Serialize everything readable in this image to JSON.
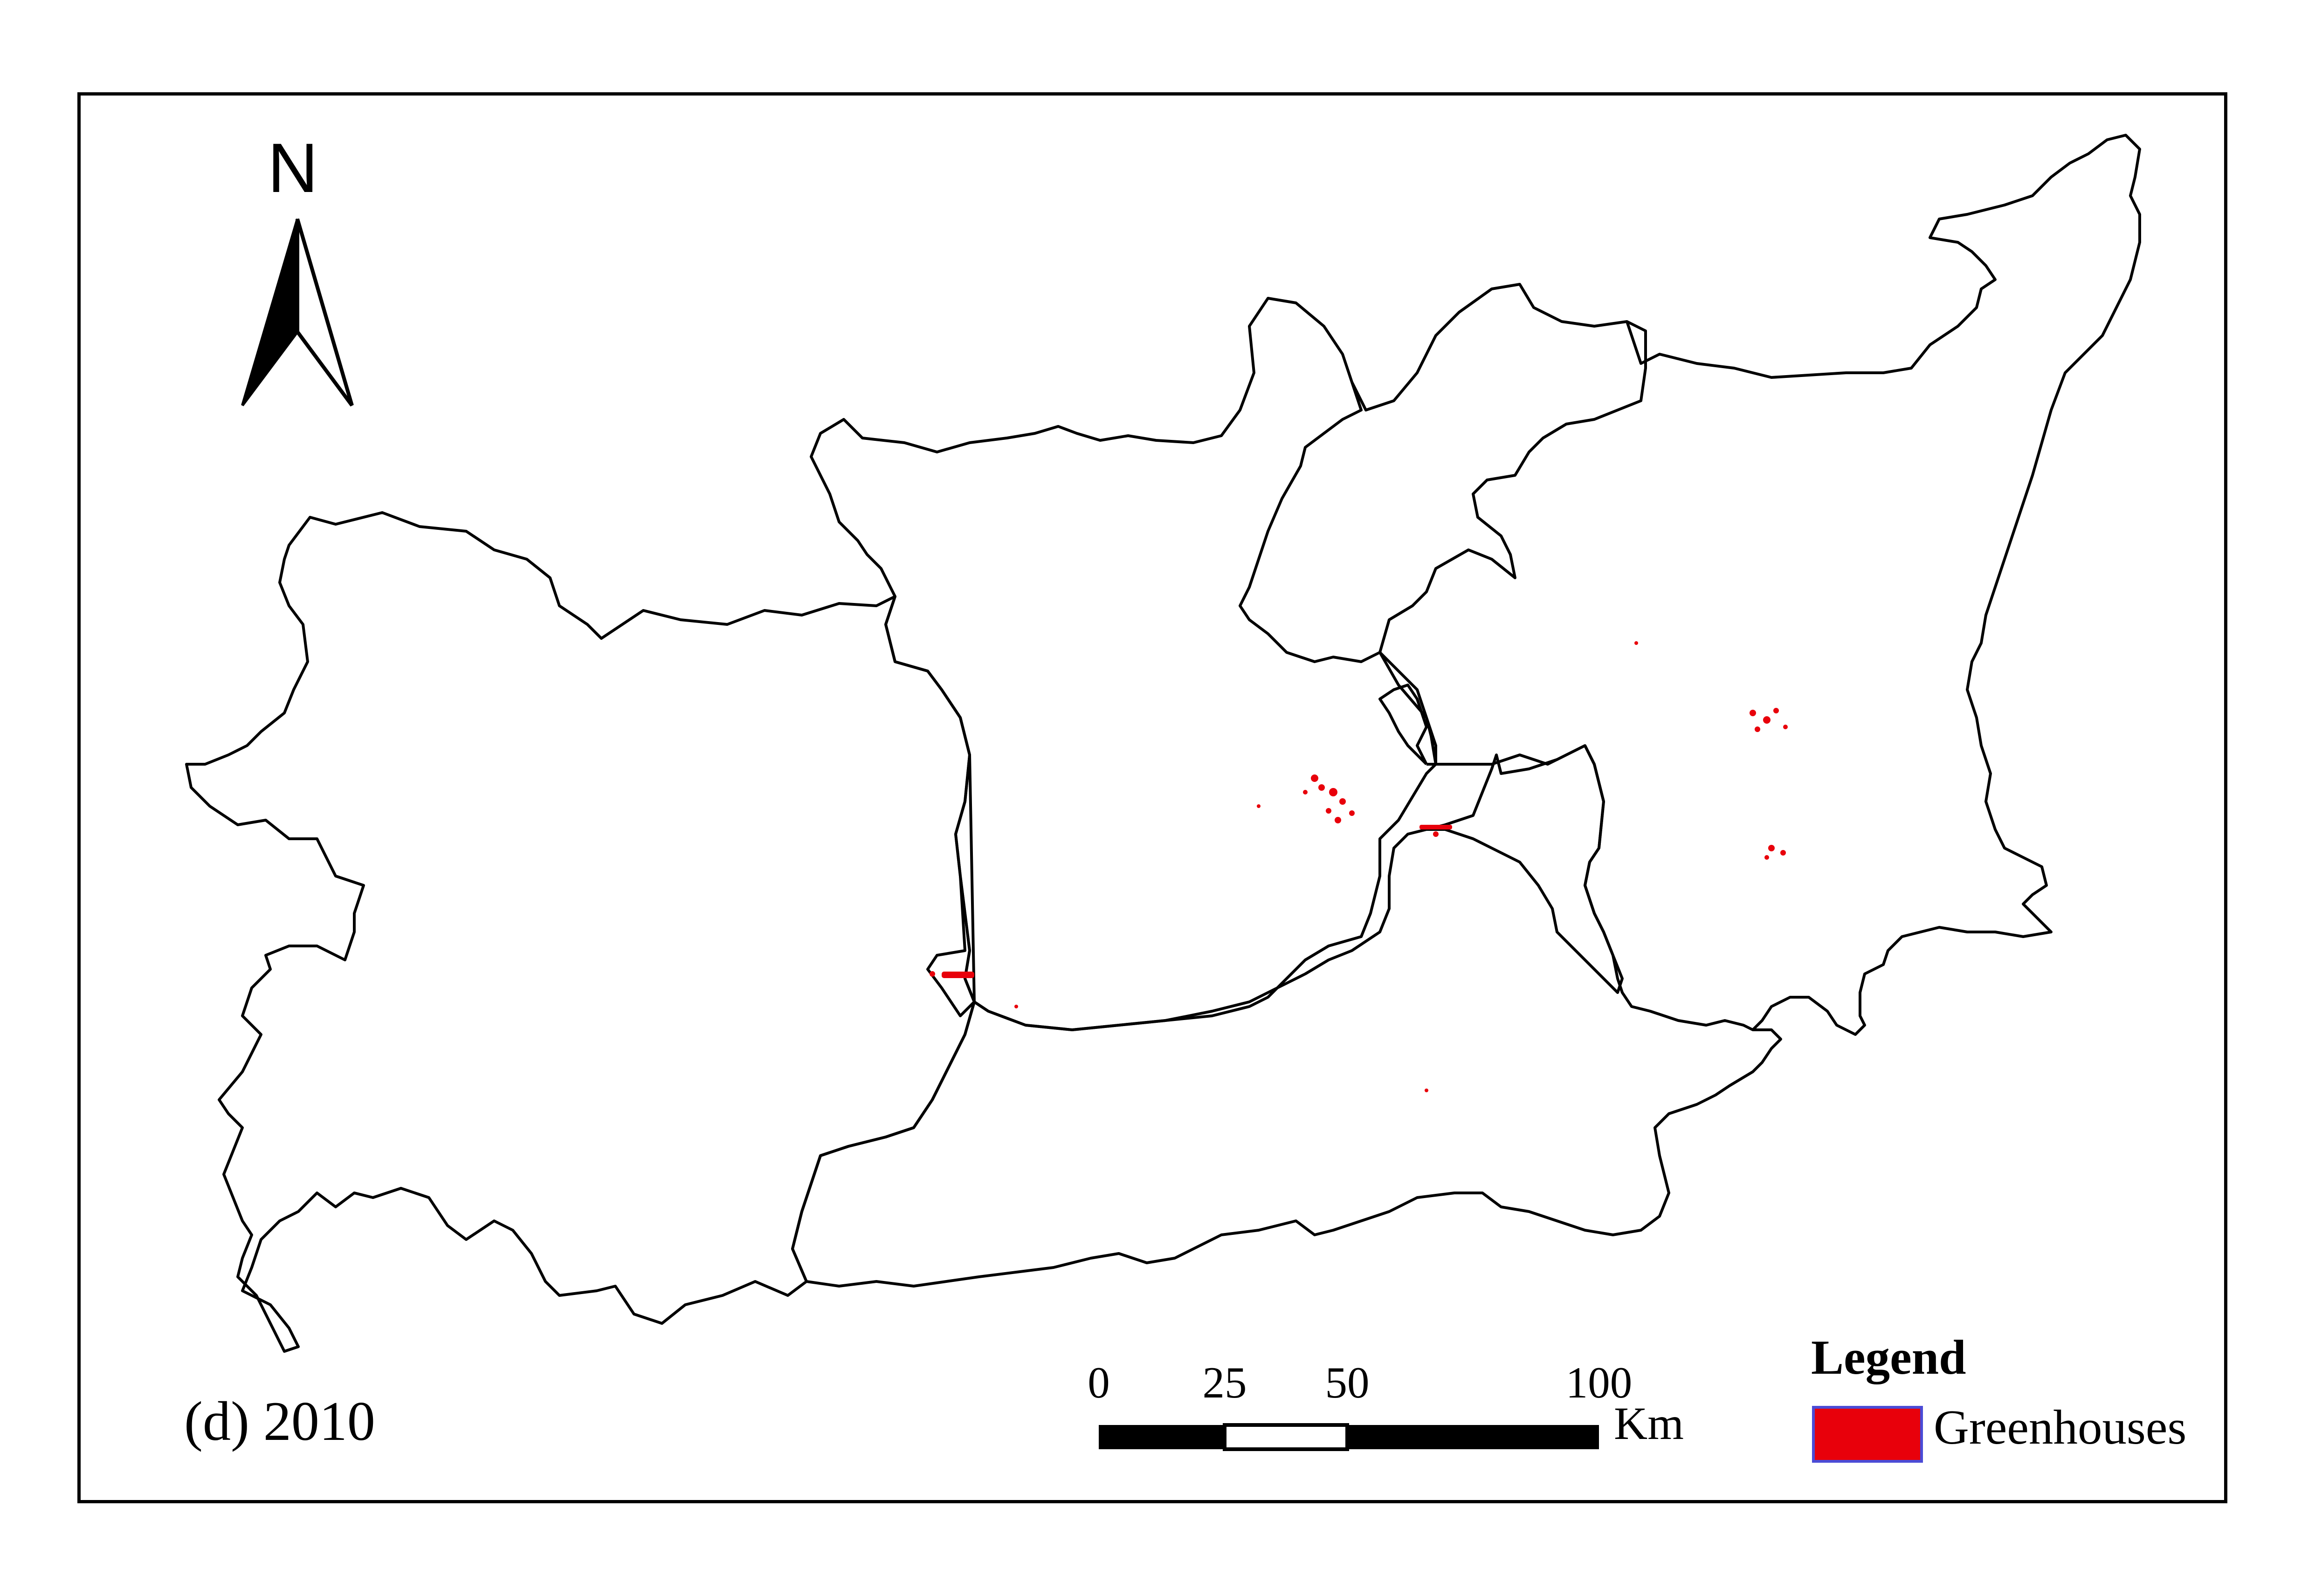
{
  "north_arrow": {
    "letter": "N",
    "icon": "north-arrow-icon"
  },
  "panel_label": "(d) 2010",
  "scale_bar": {
    "ticks": [
      "0",
      "25",
      "50",
      "100"
    ],
    "unit": "Km"
  },
  "legend": {
    "title": "Legend",
    "items": [
      {
        "label": "Greenhouses",
        "color": "#e8000b",
        "border": "#4b4bd6"
      }
    ]
  },
  "colors": {
    "boundary": "#000000",
    "greenhouse": "#e8000b",
    "background": "#ffffff"
  }
}
